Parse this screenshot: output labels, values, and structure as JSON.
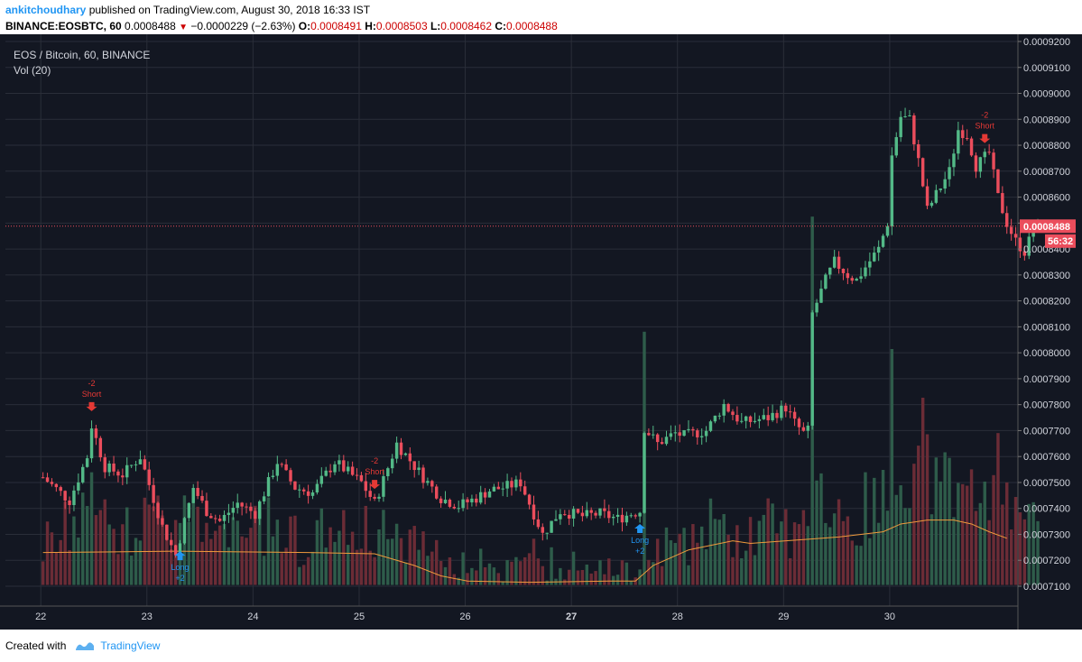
{
  "header": {
    "user": "ankitchoudhary",
    "published": "published on TradingView.com, August 30, 2018 16:33 IST",
    "symbol": "BINANCE:EOSBTC, 60",
    "last": "0.0008488",
    "change": "−0.0000229 (−2.63%)",
    "o_label": "O:",
    "o_value": "0.0008491",
    "h_label": "H:",
    "h_value": "0.0008503",
    "l_label": "L:",
    "l_value": "0.0008462",
    "c_label": "C:",
    "c_value": "0.0008488"
  },
  "footer": {
    "created_with": "Created with",
    "brand": "TradingView"
  },
  "chart_data": {
    "type": "candlestick",
    "legend": [
      "EOS / Bitcoin, 60, BINANCE",
      "Vol (20)"
    ],
    "y_axis": {
      "min": 0.00071,
      "max": 0.00092,
      "step": 1e-05,
      "ticks": [
        "0.0007100",
        "0.0007200",
        "0.0007300",
        "0.0007400",
        "0.0007500",
        "0.0007600",
        "0.0007700",
        "0.0007800",
        "0.0007900",
        "0.0008000",
        "0.0008100",
        "0.0008200",
        "0.0008300",
        "0.0008400",
        "0.0008500",
        "0.0008600",
        "0.0008700",
        "0.0008800",
        "0.0008900",
        "0.0009000",
        "0.0009100",
        "0.0009200"
      ]
    },
    "x_axis": {
      "labels": [
        "22",
        "23",
        "24",
        "25",
        "26",
        "27",
        "28",
        "29",
        "30"
      ],
      "start_hour": -8,
      "hours": 229
    },
    "last_price": {
      "value": 0.0008488,
      "label": "0.0008488",
      "countdown": "56:32"
    },
    "colors": {
      "background": "#131722",
      "grid": "#2a2e39",
      "up": "#53b987",
      "down": "#eb4d5c",
      "vol_ma": "#ef9a3c",
      "signal_long": "#2196f3",
      "signal_short": "#e53935",
      "price_line": "#eb4d5c"
    },
    "key_points": [
      [
        0,
        7.52
      ],
      [
        6,
        7.43
      ],
      [
        10,
        7.6
      ],
      [
        11,
        7.72
      ],
      [
        14,
        7.56
      ],
      [
        18,
        7.53
      ],
      [
        22,
        7.6
      ],
      [
        27,
        7.33
      ],
      [
        30,
        7.22
      ],
      [
        34,
        7.48
      ],
      [
        37,
        7.39
      ],
      [
        40,
        7.35
      ],
      [
        44,
        7.42
      ],
      [
        48,
        7.38
      ],
      [
        53,
        7.58
      ],
      [
        57,
        7.48
      ],
      [
        61,
        7.46
      ],
      [
        66,
        7.58
      ],
      [
        72,
        7.5
      ],
      [
        75,
        7.42
      ],
      [
        77,
        7.51
      ],
      [
        80,
        7.65
      ],
      [
        86,
        7.52
      ],
      [
        90,
        7.44
      ],
      [
        94,
        7.41
      ],
      [
        98,
        7.44
      ],
      [
        101,
        7.47
      ],
      [
        104,
        7.48
      ],
      [
        108,
        7.5
      ],
      [
        110,
        7.42
      ],
      [
        113,
        7.3
      ],
      [
        117,
        7.39
      ],
      [
        122,
        7.37
      ],
      [
        126,
        7.38
      ],
      [
        130,
        7.36
      ],
      [
        133,
        7.38
      ],
      [
        135,
        7.39
      ],
      [
        136,
        7.71
      ],
      [
        139,
        7.65
      ],
      [
        143,
        7.69
      ],
      [
        145,
        7.68
      ],
      [
        150,
        7.7
      ],
      [
        154,
        7.8
      ],
      [
        158,
        7.73
      ],
      [
        164,
        7.75
      ],
      [
        168,
        7.79
      ],
      [
        170,
        7.73
      ],
      [
        172,
        7.69
      ],
      [
        173,
        7.7
      ],
      [
        174,
        8.15
      ],
      [
        177,
        8.28
      ],
      [
        179,
        8.35
      ],
      [
        182,
        8.3
      ],
      [
        184,
        8.28
      ],
      [
        186,
        8.33
      ],
      [
        189,
        8.4
      ],
      [
        191,
        8.5
      ],
      [
        192,
        8.76
      ],
      [
        194,
        8.91
      ],
      [
        196,
        8.9
      ],
      [
        198,
        8.74
      ],
      [
        200,
        8.55
      ],
      [
        203,
        8.64
      ],
      [
        205,
        8.7
      ],
      [
        207,
        8.86
      ],
      [
        209,
        8.84
      ],
      [
        211,
        8.72
      ],
      [
        214,
        8.77
      ],
      [
        216,
        8.6
      ],
      [
        218,
        8.5
      ],
      [
        220,
        8.43
      ],
      [
        222,
        8.39
      ],
      [
        224,
        8.47
      ],
      [
        225,
        8.49
      ]
    ],
    "signals": [
      {
        "type": "short",
        "hour": 11,
        "text": [
          "-2",
          "Short"
        ]
      },
      {
        "type": "long",
        "hour": 31,
        "text": [
          "Long",
          "+2"
        ]
      },
      {
        "type": "short",
        "hour": 75,
        "text": [
          "-2",
          "Short"
        ]
      },
      {
        "type": "long",
        "hour": 135,
        "text": [
          "Long",
          "+2"
        ]
      },
      {
        "type": "short",
        "hour": 213,
        "text": [
          "-2",
          "Short"
        ]
      }
    ],
    "volume_ma": [
      [
        0,
        7.23
      ],
      [
        30,
        7.235
      ],
      [
        60,
        7.23
      ],
      [
        75,
        7.225
      ],
      [
        84,
        7.18
      ],
      [
        90,
        7.14
      ],
      [
        96,
        7.12
      ],
      [
        110,
        7.115
      ],
      [
        128,
        7.12
      ],
      [
        134,
        7.12
      ],
      [
        138,
        7.18
      ],
      [
        146,
        7.24
      ],
      [
        156,
        7.275
      ],
      [
        160,
        7.265
      ],
      [
        172,
        7.28
      ],
      [
        180,
        7.29
      ],
      [
        190,
        7.31
      ],
      [
        194,
        7.34
      ],
      [
        200,
        7.355
      ],
      [
        206,
        7.355
      ],
      [
        210,
        7.34
      ],
      [
        214,
        7.31
      ],
      [
        218,
        7.285
      ]
    ]
  }
}
